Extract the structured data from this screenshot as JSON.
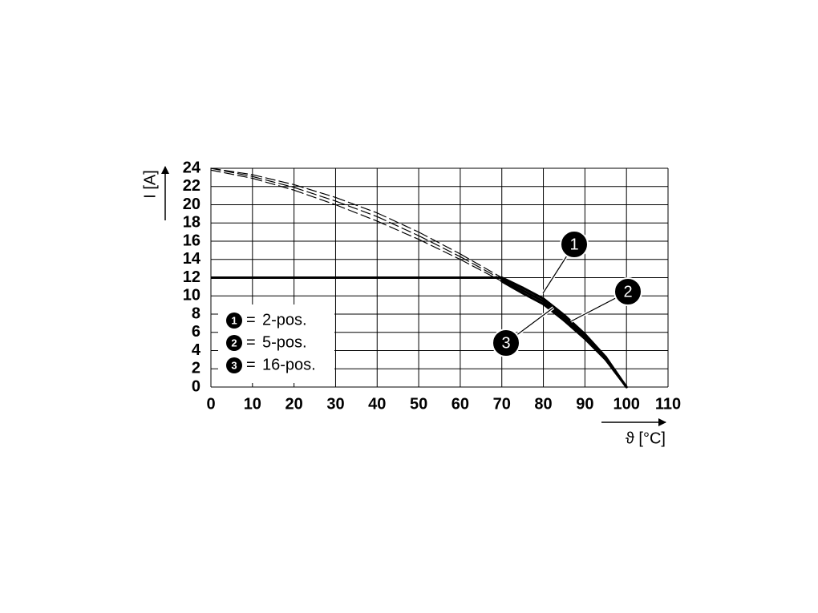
{
  "chart_data": {
    "type": "line",
    "x_label": "ϑ [°C]",
    "y_label": "I [A]",
    "x": [
      0,
      10,
      20,
      30,
      40,
      50,
      60,
      70,
      75,
      80,
      85,
      90,
      95,
      100
    ],
    "series": [
      {
        "name": "2-pos.",
        "marker": "1",
        "color": "#000000",
        "values": [
          24,
          23.3,
          22.2,
          20.8,
          19.1,
          17.0,
          14.6,
          12.0,
          10.9,
          9.7,
          7.9,
          5.8,
          3.3,
          0
        ]
      },
      {
        "name": "5-pos.",
        "marker": "2",
        "color": "#000000",
        "values": [
          24,
          23.1,
          21.9,
          20.4,
          18.7,
          16.6,
          14.3,
          11.8,
          10.6,
          9.4,
          7.6,
          5.5,
          3.1,
          0
        ]
      },
      {
        "name": "16-pos.",
        "marker": "3",
        "color": "#000000",
        "values": [
          23.8,
          22.9,
          21.6,
          20.0,
          18.2,
          16.2,
          14.0,
          11.6,
          10.3,
          9.1,
          7.3,
          5.3,
          3.0,
          0
        ]
      }
    ],
    "limit_line": {
      "x": [
        0,
        70
      ],
      "values": [
        12,
        12
      ]
    },
    "legend_separator": "=",
    "xlim": [
      0,
      110
    ],
    "xticks": [
      0,
      10,
      20,
      30,
      40,
      50,
      60,
      70,
      80,
      90,
      100,
      110
    ],
    "ylim": [
      0,
      24
    ],
    "yticks": [
      0,
      2,
      4,
      6,
      8,
      10,
      12,
      14,
      16,
      18,
      20,
      22,
      24
    ],
    "grid": true
  }
}
